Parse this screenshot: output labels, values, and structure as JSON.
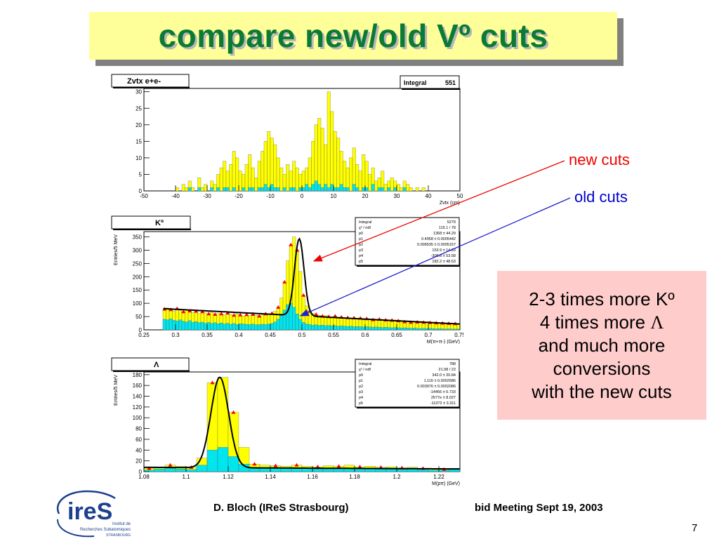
{
  "slide": {
    "title": "compare new/old Vº cuts",
    "label_new": "new cuts",
    "label_old": "old cuts",
    "note_lines": [
      "2-3 times more Kº",
      "4 times more ",
      "and much more",
      "conversions",
      "with the new cuts"
    ],
    "note_lambda": "Λ",
    "footer_author": "D. Bloch (IReS Strasbourg)",
    "footer_meeting": "bid Meeting   Sept  19, 2003",
    "page_number": "7",
    "logo": {
      "mark": "ireS",
      "line1": "Institut de",
      "line2": "Recherches Subatomiques",
      "line3": "STRASBOURG"
    }
  },
  "colors": {
    "new_fill": "#ffff00",
    "old_fill": "#00e5ee",
    "fit_line": "#000000",
    "markers": "#ff0000",
    "arrow_new": "#ee0000",
    "arrow_old": "#2222cc"
  },
  "chart_data": [
    {
      "type": "bar",
      "title": "Zvtx e+e-",
      "stats": [
        [
          "Integral",
          "551"
        ]
      ],
      "xlabel": "Zvtx (cm)",
      "ylabel": "",
      "xlim": [
        -50,
        50
      ],
      "ylim": [
        0,
        31
      ],
      "xticks": [
        -50,
        -40,
        -30,
        -20,
        -10,
        0,
        10,
        20,
        30,
        40,
        50
      ],
      "yticks": [
        0,
        5,
        10,
        15,
        20,
        25,
        30
      ],
      "bin_width": 1,
      "grid": false,
      "series": [
        {
          "name": "new",
          "x": [
            -40,
            -39,
            -38,
            -37,
            -36,
            -35,
            -34,
            -33,
            -32,
            -31,
            -30,
            -29,
            -28,
            -27,
            -26,
            -25,
            -24,
            -23,
            -22,
            -21,
            -20,
            -19,
            -18,
            -17,
            -16,
            -15,
            -14,
            -13,
            -12,
            -11,
            -10,
            -9,
            -8,
            -7,
            -6,
            -5,
            -4,
            -3,
            -2,
            -1,
            0,
            1,
            2,
            3,
            4,
            5,
            6,
            7,
            8,
            9,
            10,
            11,
            12,
            13,
            14,
            15,
            16,
            17,
            18,
            19,
            20,
            21,
            22,
            23,
            24,
            25,
            26,
            27,
            28,
            29,
            30,
            31,
            32,
            33,
            34,
            35,
            36,
            37,
            38,
            39
          ],
          "values": [
            1,
            0,
            2,
            1,
            3,
            1,
            0,
            4,
            1,
            2,
            0,
            3,
            2,
            5,
            7,
            9,
            6,
            8,
            12,
            10,
            6,
            5,
            8,
            11,
            7,
            4,
            9,
            12,
            15,
            18,
            16,
            14,
            10,
            7,
            5,
            8,
            6,
            9,
            7,
            5,
            6,
            7,
            10,
            15,
            20,
            22,
            19,
            14,
            30,
            24,
            18,
            16,
            12,
            9,
            7,
            10,
            13,
            8,
            6,
            11,
            9,
            5,
            7,
            3,
            4,
            6,
            2,
            3,
            4,
            3,
            2,
            1,
            3,
            2,
            1,
            0,
            1,
            0,
            1,
            0
          ]
        },
        {
          "name": "old",
          "x": [
            -40,
            -39,
            -38,
            -37,
            -36,
            -35,
            -34,
            -33,
            -32,
            -31,
            -30,
            -29,
            -28,
            -27,
            -26,
            -25,
            -24,
            -23,
            -22,
            -21,
            -20,
            -19,
            -18,
            -17,
            -16,
            -15,
            -14,
            -13,
            -12,
            -11,
            -10,
            -9,
            -8,
            -7,
            -6,
            -5,
            -4,
            -3,
            -2,
            -1,
            0,
            1,
            2,
            3,
            4,
            5,
            6,
            7,
            8,
            9,
            10,
            11,
            12,
            13,
            14,
            15,
            16,
            17,
            18,
            19,
            20,
            21,
            22,
            23,
            24,
            25,
            26,
            27,
            28,
            29,
            30,
            31,
            32,
            33,
            34,
            35,
            36,
            37,
            38,
            39
          ],
          "values": [
            0,
            0,
            0,
            0,
            1,
            0,
            0,
            1,
            0,
            0,
            0,
            1,
            0,
            1,
            0,
            1,
            1,
            0,
            1,
            0,
            0,
            1,
            0,
            1,
            1,
            0,
            1,
            1,
            2,
            1,
            2,
            1,
            1,
            0,
            1,
            0,
            1,
            1,
            0,
            1,
            1,
            2,
            1,
            2,
            3,
            2,
            1,
            2,
            1,
            2,
            1,
            1,
            2,
            1,
            1,
            0,
            2,
            1,
            0,
            1,
            1,
            0,
            2,
            0,
            1,
            1,
            0,
            1,
            0,
            1,
            0,
            0,
            1,
            0,
            0,
            0,
            0,
            0,
            0,
            0
          ]
        }
      ]
    },
    {
      "type": "bar",
      "title": "Kº",
      "stats": [
        [
          "Integral",
          "5279"
        ],
        [
          "χ² / ndf",
          "115.1 / 78"
        ],
        [
          "p0",
          "1368 ± 44.29"
        ],
        [
          "p1",
          "0.4958 ± 0.0005442"
        ],
        [
          "p2",
          "0.006535 ± 0.0005157"
        ],
        [
          "p3",
          "153.9 ± 14.93"
        ],
        [
          "p4",
          "-306.8 ± 53.58"
        ],
        [
          "p5",
          "182.2 ± 48.63"
        ]
      ],
      "xlabel": "M(π+π-) (GeV)",
      "ylabel": "Entries/5 MeV",
      "xlim": [
        0.25,
        0.75
      ],
      "ylim": [
        0,
        370
      ],
      "xticks": [
        0.25,
        0.3,
        0.35,
        0.4,
        0.45,
        0.5,
        0.55,
        0.6,
        0.65,
        0.7,
        0.75
      ],
      "yticks": [
        0,
        50,
        100,
        150,
        200,
        250,
        300,
        350
      ],
      "bin_width": 0.005,
      "grid": false,
      "series": [
        {
          "name": "new",
          "x": [
            0.28,
            0.285,
            0.29,
            0.295,
            0.3,
            0.305,
            0.31,
            0.315,
            0.32,
            0.325,
            0.33,
            0.335,
            0.34,
            0.345,
            0.35,
            0.355,
            0.36,
            0.365,
            0.37,
            0.375,
            0.38,
            0.385,
            0.39,
            0.395,
            0.4,
            0.405,
            0.41,
            0.415,
            0.42,
            0.425,
            0.43,
            0.435,
            0.44,
            0.445,
            0.45,
            0.455,
            0.46,
            0.465,
            0.47,
            0.475,
            0.48,
            0.485,
            0.49,
            0.495,
            0.5,
            0.505,
            0.51,
            0.515,
            0.52,
            0.525,
            0.53,
            0.535,
            0.54,
            0.545,
            0.55,
            0.555,
            0.56,
            0.565,
            0.57,
            0.575,
            0.58,
            0.585,
            0.59,
            0.595,
            0.6,
            0.605,
            0.61,
            0.615,
            0.62,
            0.625,
            0.63,
            0.635,
            0.64,
            0.645,
            0.65,
            0.655,
            0.66,
            0.665,
            0.67,
            0.675,
            0.68,
            0.685,
            0.69,
            0.695,
            0.7,
            0.705,
            0.71,
            0.715,
            0.72,
            0.725,
            0.73,
            0.735,
            0.74,
            0.745
          ],
          "values": [
            78,
            82,
            76,
            70,
            80,
            72,
            68,
            75,
            71,
            66,
            70,
            62,
            68,
            64,
            60,
            66,
            58,
            62,
            60,
            57,
            63,
            58,
            55,
            60,
            56,
            52,
            57,
            54,
            58,
            55,
            52,
            56,
            60,
            58,
            62,
            70,
            85,
            120,
            180,
            260,
            320,
            350,
            300,
            220,
            130,
            90,
            70,
            62,
            58,
            55,
            52,
            54,
            50,
            48,
            52,
            46,
            48,
            44,
            46,
            42,
            45,
            40,
            44,
            38,
            42,
            40,
            38,
            36,
            40,
            35,
            37,
            34,
            36,
            32,
            34,
            33,
            30,
            32,
            28,
            30,
            29,
            27,
            28,
            26,
            27,
            25,
            26,
            24,
            25,
            23,
            24,
            22,
            23,
            22
          ]
        },
        {
          "name": "old",
          "x": [
            0.28,
            0.285,
            0.29,
            0.295,
            0.3,
            0.305,
            0.31,
            0.315,
            0.32,
            0.325,
            0.33,
            0.335,
            0.34,
            0.345,
            0.35,
            0.355,
            0.36,
            0.365,
            0.37,
            0.375,
            0.38,
            0.385,
            0.39,
            0.395,
            0.4,
            0.405,
            0.41,
            0.415,
            0.42,
            0.425,
            0.43,
            0.435,
            0.44,
            0.445,
            0.45,
            0.455,
            0.46,
            0.465,
            0.47,
            0.475,
            0.48,
            0.485,
            0.49,
            0.495,
            0.5,
            0.505,
            0.51,
            0.515,
            0.52,
            0.525,
            0.53,
            0.535,
            0.54,
            0.545,
            0.55,
            0.555,
            0.56,
            0.565,
            0.57,
            0.575,
            0.58,
            0.585,
            0.59,
            0.595,
            0.6,
            0.605,
            0.61,
            0.615,
            0.62,
            0.625,
            0.63,
            0.635,
            0.64,
            0.645,
            0.65,
            0.655,
            0.66,
            0.665,
            0.67,
            0.675,
            0.68,
            0.685,
            0.69,
            0.695,
            0.7,
            0.705,
            0.71,
            0.715,
            0.72,
            0.725,
            0.73,
            0.735,
            0.74,
            0.745
          ],
          "values": [
            40,
            38,
            42,
            36,
            34,
            38,
            32,
            30,
            35,
            28,
            31,
            27,
            29,
            25,
            28,
            24,
            27,
            23,
            26,
            22,
            25,
            21,
            24,
            20,
            23,
            22,
            21,
            20,
            22,
            19,
            20,
            21,
            20,
            22,
            24,
            30,
            40,
            55,
            75,
            95,
            100,
            85,
            60,
            40,
            28,
            22,
            20,
            18,
            19,
            17,
            18,
            16,
            17,
            15,
            16,
            14,
            15,
            14,
            13,
            14,
            12,
            13,
            12,
            11,
            12,
            11,
            10,
            11,
            10,
            9,
            10,
            9,
            8,
            9,
            8,
            7,
            8,
            7,
            6,
            7,
            6,
            5,
            6,
            5,
            6,
            5,
            4,
            5,
            4,
            3,
            4,
            3,
            3,
            3
          ]
        }
      ]
    },
    {
      "type": "bar",
      "title": "Λ",
      "stats": [
        [
          "Integral",
          "788"
        ],
        [
          "χ² / ndf",
          "21.98 / 22"
        ],
        [
          "p0",
          "342.0 ± 20.84"
        ],
        [
          "p1",
          "1.116 ± 0.0002586"
        ],
        [
          "p2",
          "0.003976 ± 0.0002086"
        ],
        [
          "p3",
          "-14456 ± 6.733"
        ],
        [
          "p4",
          "2577e ± 8.027"
        ],
        [
          "p5",
          "-11372 ± 3.311"
        ]
      ],
      "xlabel": "M(pπ) (GeV)",
      "ylabel": "Entries/5 MeV",
      "xlim": [
        1.08,
        1.23
      ],
      "ylim": [
        0,
        185
      ],
      "xticks": [
        1.08,
        1.1,
        1.12,
        1.14,
        1.16,
        1.18,
        1.2,
        1.22
      ],
      "yticks": [
        0,
        20,
        40,
        60,
        80,
        100,
        120,
        140,
        160,
        180
      ],
      "bin_width": 0.005,
      "grid": false,
      "series": [
        {
          "name": "new",
          "x": [
            1.08,
            1.085,
            1.09,
            1.095,
            1.1,
            1.105,
            1.11,
            1.115,
            1.12,
            1.125,
            1.13,
            1.135,
            1.14,
            1.145,
            1.15,
            1.155,
            1.16,
            1.165,
            1.17,
            1.175,
            1.18,
            1.185,
            1.19,
            1.195,
            1.2,
            1.205,
            1.21,
            1.215,
            1.22,
            1.225
          ],
          "values": [
            6,
            9,
            12,
            10,
            8,
            25,
            165,
            175,
            110,
            45,
            14,
            12,
            11,
            10,
            12,
            10,
            9,
            11,
            10,
            12,
            9,
            10,
            8,
            9,
            7,
            8,
            6,
            5,
            4,
            6
          ]
        },
        {
          "name": "old",
          "x": [
            1.08,
            1.085,
            1.09,
            1.095,
            1.1,
            1.105,
            1.11,
            1.115,
            1.12,
            1.125,
            1.13,
            1.135,
            1.14,
            1.145,
            1.15,
            1.155,
            1.16,
            1.165,
            1.17,
            1.175,
            1.18,
            1.185,
            1.19,
            1.195,
            1.2,
            1.205,
            1.21,
            1.215,
            1.22,
            1.225
          ],
          "values": [
            3,
            5,
            6,
            5,
            4,
            12,
            40,
            45,
            28,
            14,
            8,
            7,
            6,
            6,
            7,
            6,
            5,
            6,
            6,
            7,
            5,
            6,
            5,
            5,
            4,
            5,
            4,
            3,
            3,
            4
          ]
        }
      ]
    }
  ]
}
